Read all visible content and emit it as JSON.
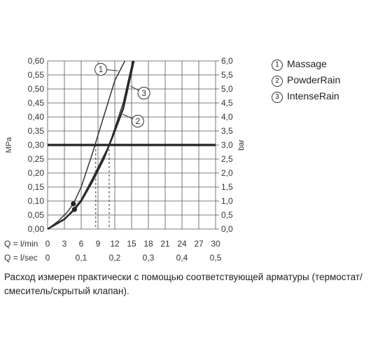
{
  "chart_data": {
    "type": "line",
    "left_axis": {
      "label": "MPa",
      "min": 0,
      "max": 0.6,
      "ticks": [
        "0,00",
        "0,05",
        "0,10",
        "0,15",
        "0,20",
        "0,25",
        "0,30",
        "0,35",
        "0,40",
        "0,45",
        "0,50",
        "0,55",
        "0,60"
      ]
    },
    "right_axis": {
      "label": "bar",
      "min": 0,
      "max": 6,
      "ticks": [
        "0,0",
        "0,5",
        "1,0",
        "1,5",
        "2,0",
        "2,5",
        "3,0",
        "3,5",
        "4,0",
        "4,5",
        "5,0",
        "5,5",
        "6,0"
      ]
    },
    "x_axis_lmin": {
      "label": "Q = l/min",
      "min": 0,
      "max": 30,
      "ticks": [
        "0",
        "3",
        "6",
        "9",
        "12",
        "15",
        "18",
        "21",
        "24",
        "27",
        "30"
      ]
    },
    "x_axis_lsec": {
      "label": "Q = l/sec",
      "min": 0,
      "max": 0.5,
      "ticks": [
        "0",
        "0,1",
        "0,2",
        "0,3",
        "0,4",
        "0,5"
      ]
    },
    "reference_line": {
      "y_mpa": 0.3,
      "flow_markers_lmin": [
        8.6,
        11.0
      ]
    },
    "series": [
      {
        "name": "Massage",
        "number": "1",
        "x": [
          0,
          2,
          3.5,
          4.6,
          6,
          8,
          10,
          12,
          13.8
        ],
        "y": [
          0,
          0.03,
          0.06,
          0.09,
          0.15,
          0.27,
          0.4,
          0.53,
          0.6
        ]
      },
      {
        "name": "PowderRain",
        "number": "2",
        "x": [
          0,
          3,
          4.8,
          6,
          8,
          10,
          11,
          12,
          13.5,
          15.4
        ],
        "y": [
          0,
          0.035,
          0.07,
          0.1,
          0.17,
          0.25,
          0.3,
          0.35,
          0.43,
          0.6
        ]
      },
      {
        "name": "IntenseRain",
        "number": "3",
        "x": [
          0,
          3,
          4.6,
          6,
          8,
          10,
          11,
          12,
          13.5,
          15.2
        ],
        "y": [
          0,
          0.035,
          0.07,
          0.105,
          0.18,
          0.26,
          0.3,
          0.36,
          0.45,
          0.6
        ]
      }
    ]
  },
  "legend": [
    {
      "number": "1",
      "name": "Massage"
    },
    {
      "number": "2",
      "name": "PowderRain"
    },
    {
      "number": "3",
      "name": "IntenseRain"
    }
  ],
  "note": "Расход измерен практически с помощью соответствующей арматуры (термостат/смеситель/скрытый клапан)."
}
